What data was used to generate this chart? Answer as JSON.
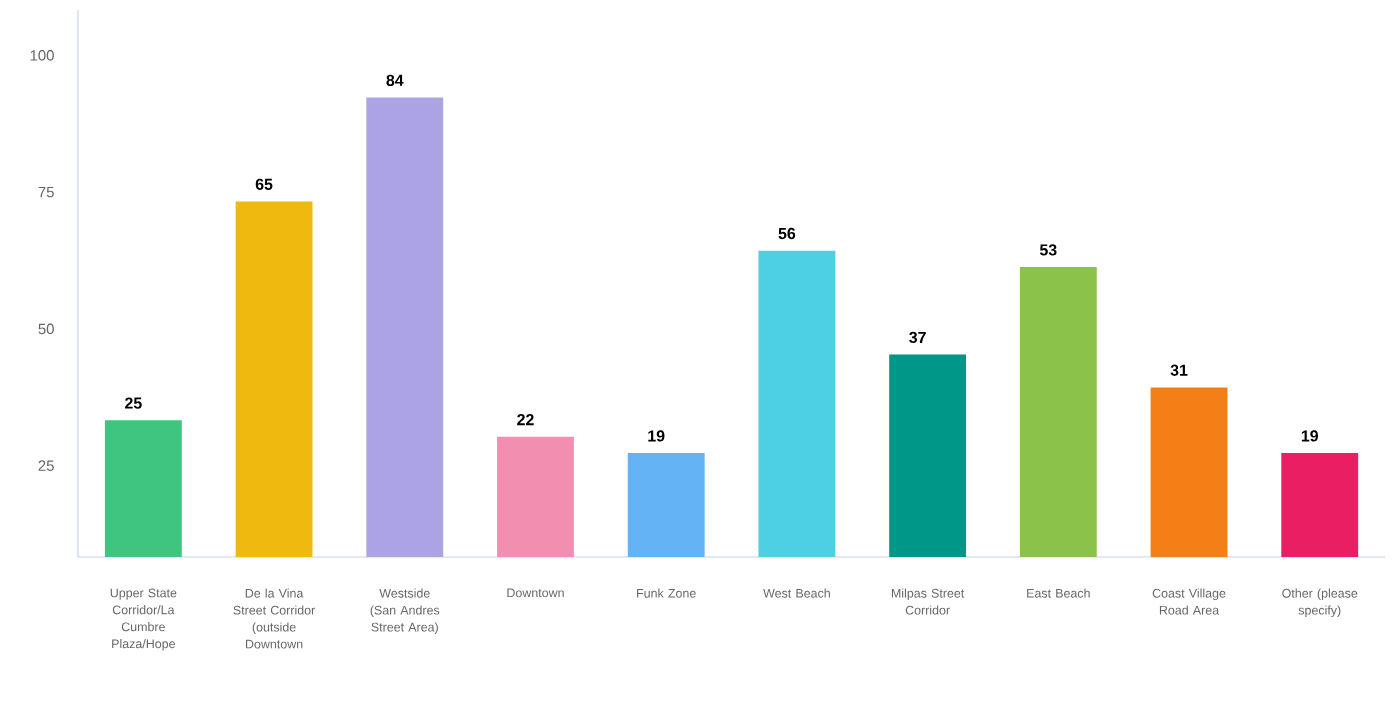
{
  "chart_data": {
    "type": "bar",
    "categories": [
      "Upper State Corridor/La Cumbre Plaza/Hope",
      "De la Vina Street Corridor (outside Downtown",
      "Westside (San Andres Street Area)",
      "Downtown",
      "Funk Zone",
      "West Beach",
      "Milpas Street Corridor",
      "East Beach",
      "Coast Village Road Area",
      "Other (please specify)"
    ],
    "values": [
      25,
      65,
      84,
      22,
      19,
      56,
      37,
      53,
      31,
      19
    ],
    "colors": [
      "#40c580",
      "#f0b90f",
      "#aca3e5",
      "#f28fb0",
      "#63b3f5",
      "#4dd0e1",
      "#009688",
      "#8bc34a",
      "#f57f17",
      "#e91e63"
    ],
    "base": [
      8.3,
      8.3,
      8.3,
      8.3,
      8.3,
      8.3,
      8.3,
      8.3,
      8.3,
      8.3
    ],
    "data_labels": true,
    "ylim": [
      8.3,
      108.3
    ],
    "yticks": [
      25,
      50,
      75,
      100
    ]
  }
}
